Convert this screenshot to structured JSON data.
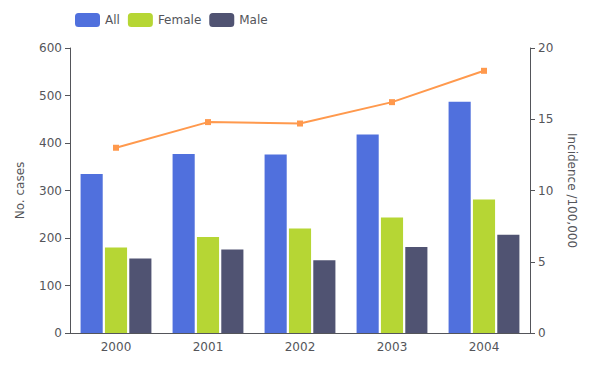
{
  "chart_data": {
    "type": "bar",
    "categories": [
      "2000",
      "2001",
      "2002",
      "2003",
      "2004"
    ],
    "series": [
      {
        "name": "All",
        "type": "bar",
        "values": [
          335,
          377,
          376,
          418,
          487
        ]
      },
      {
        "name": "Female",
        "type": "bar",
        "values": [
          180,
          202,
          220,
          243,
          281
        ]
      },
      {
        "name": "Male",
        "type": "bar",
        "values": [
          157,
          176,
          153,
          181,
          207
        ]
      },
      {
        "type": "line",
        "axis": "y2",
        "marker": "square",
        "values": [
          13.0,
          14.8,
          14.7,
          16.2,
          18.4
        ]
      }
    ],
    "ylabel": "No. cases",
    "y2label": "Incidence /100,000",
    "ylim": [
      0,
      600
    ],
    "yticks": [
      0,
      100,
      200,
      300,
      400,
      500,
      600
    ],
    "y2lim": [
      0,
      20
    ],
    "y2ticks": [
      0,
      5,
      10,
      15,
      20
    ],
    "legend": "upper left",
    "grid": false
  }
}
